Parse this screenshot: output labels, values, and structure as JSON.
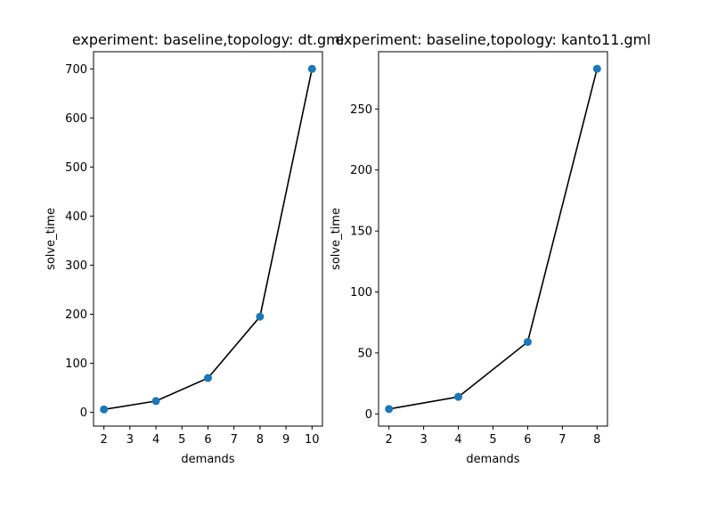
{
  "chart_data": [
    {
      "type": "scatter",
      "title": "experiment: baseline,topology: dt.gml",
      "xlabel": "demands",
      "ylabel": "solve_time",
      "xlim": [
        1.6,
        10.4
      ],
      "ylim": [
        -28,
        735
      ],
      "xticks": [
        2,
        3,
        4,
        5,
        6,
        7,
        8,
        9,
        10
      ],
      "yticks": [
        0,
        100,
        200,
        300,
        400,
        500,
        600,
        700
      ],
      "series": [
        {
          "x": [
            2,
            4,
            6,
            8,
            10
          ],
          "y": [
            6,
            23,
            70,
            195,
            700
          ],
          "marker_color": "#1f77b4",
          "line_color": "#000000"
        }
      ],
      "grid": false
    },
    {
      "type": "scatter",
      "title": "experiment: baseline,topology: kanto11.gml",
      "xlabel": "demands",
      "ylabel": "solve_time",
      "xlim": [
        1.7,
        8.3
      ],
      "ylim": [
        -10,
        297
      ],
      "xticks": [
        2,
        3,
        4,
        5,
        6,
        7,
        8
      ],
      "yticks": [
        0,
        50,
        100,
        150,
        200,
        250
      ],
      "series": [
        {
          "x": [
            2,
            4,
            6,
            8
          ],
          "y": [
            4,
            14,
            59,
            283
          ],
          "marker_color": "#1f77b4",
          "line_color": "#000000"
        }
      ],
      "grid": false
    }
  ]
}
